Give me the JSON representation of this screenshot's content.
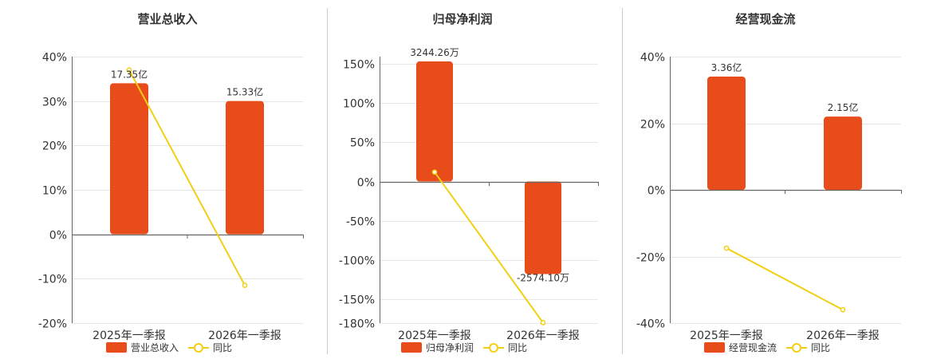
{
  "colors": {
    "bar": "#e84c1b",
    "line": "#f2cf14",
    "axis": "#666666",
    "grid": "#e6e6e6",
    "divider": "#cccccc"
  },
  "chart_data": [
    {
      "type": "bar",
      "title": "营业总收入",
      "categories": [
        "2025年一季报",
        "2026年一季报"
      ],
      "bar_labels": [
        "17.35亿",
        "15.33亿"
      ],
      "series": [
        {
          "name": "营业总收入",
          "type": "bar",
          "values": [
            34,
            30
          ]
        },
        {
          "name": "同比",
          "type": "line",
          "values": [
            37,
            -11.5
          ]
        }
      ],
      "yticks": [
        40,
        30,
        20,
        10,
        0,
        -10,
        -20
      ],
      "ytick_labels": [
        "40%",
        "30%",
        "20%",
        "10%",
        "0%",
        "-10%",
        "-20%"
      ],
      "ylim": [
        -20,
        40
      ],
      "grid": true,
      "legend_position": "bottom"
    },
    {
      "type": "bar",
      "title": "归母净利润",
      "categories": [
        "2025年一季报",
        "2026年一季报"
      ],
      "bar_labels": [
        "3244.26万",
        "-2574.10万"
      ],
      "series": [
        {
          "name": "归母净利润",
          "type": "bar",
          "values": [
            153,
            -118
          ]
        },
        {
          "name": "同比",
          "type": "line",
          "values": [
            12,
            -180
          ]
        }
      ],
      "yticks": [
        150,
        100,
        50,
        0,
        -50,
        -100,
        -150,
        -180
      ],
      "ytick_labels": [
        "150%",
        "100%",
        "50%",
        "0%",
        "-50%",
        "-100%",
        "-150%",
        "-180%"
      ],
      "ylim": [
        -180,
        160
      ],
      "grid": true,
      "legend_position": "bottom"
    },
    {
      "type": "bar",
      "title": "经营现金流",
      "categories": [
        "2025年一季报",
        "2026年一季报"
      ],
      "bar_labels": [
        "3.36亿",
        "2.15亿"
      ],
      "series": [
        {
          "name": "经营现金流",
          "type": "bar",
          "values": [
            34,
            22
          ]
        },
        {
          "name": "同比",
          "type": "line",
          "values": [
            -17.5,
            -36
          ]
        }
      ],
      "yticks": [
        40,
        20,
        0,
        -20,
        -40
      ],
      "ytick_labels": [
        "40%",
        "20%",
        "0%",
        "-20%",
        "-40%"
      ],
      "ylim": [
        -40,
        40
      ],
      "grid": true,
      "legend_position": "bottom"
    }
  ]
}
